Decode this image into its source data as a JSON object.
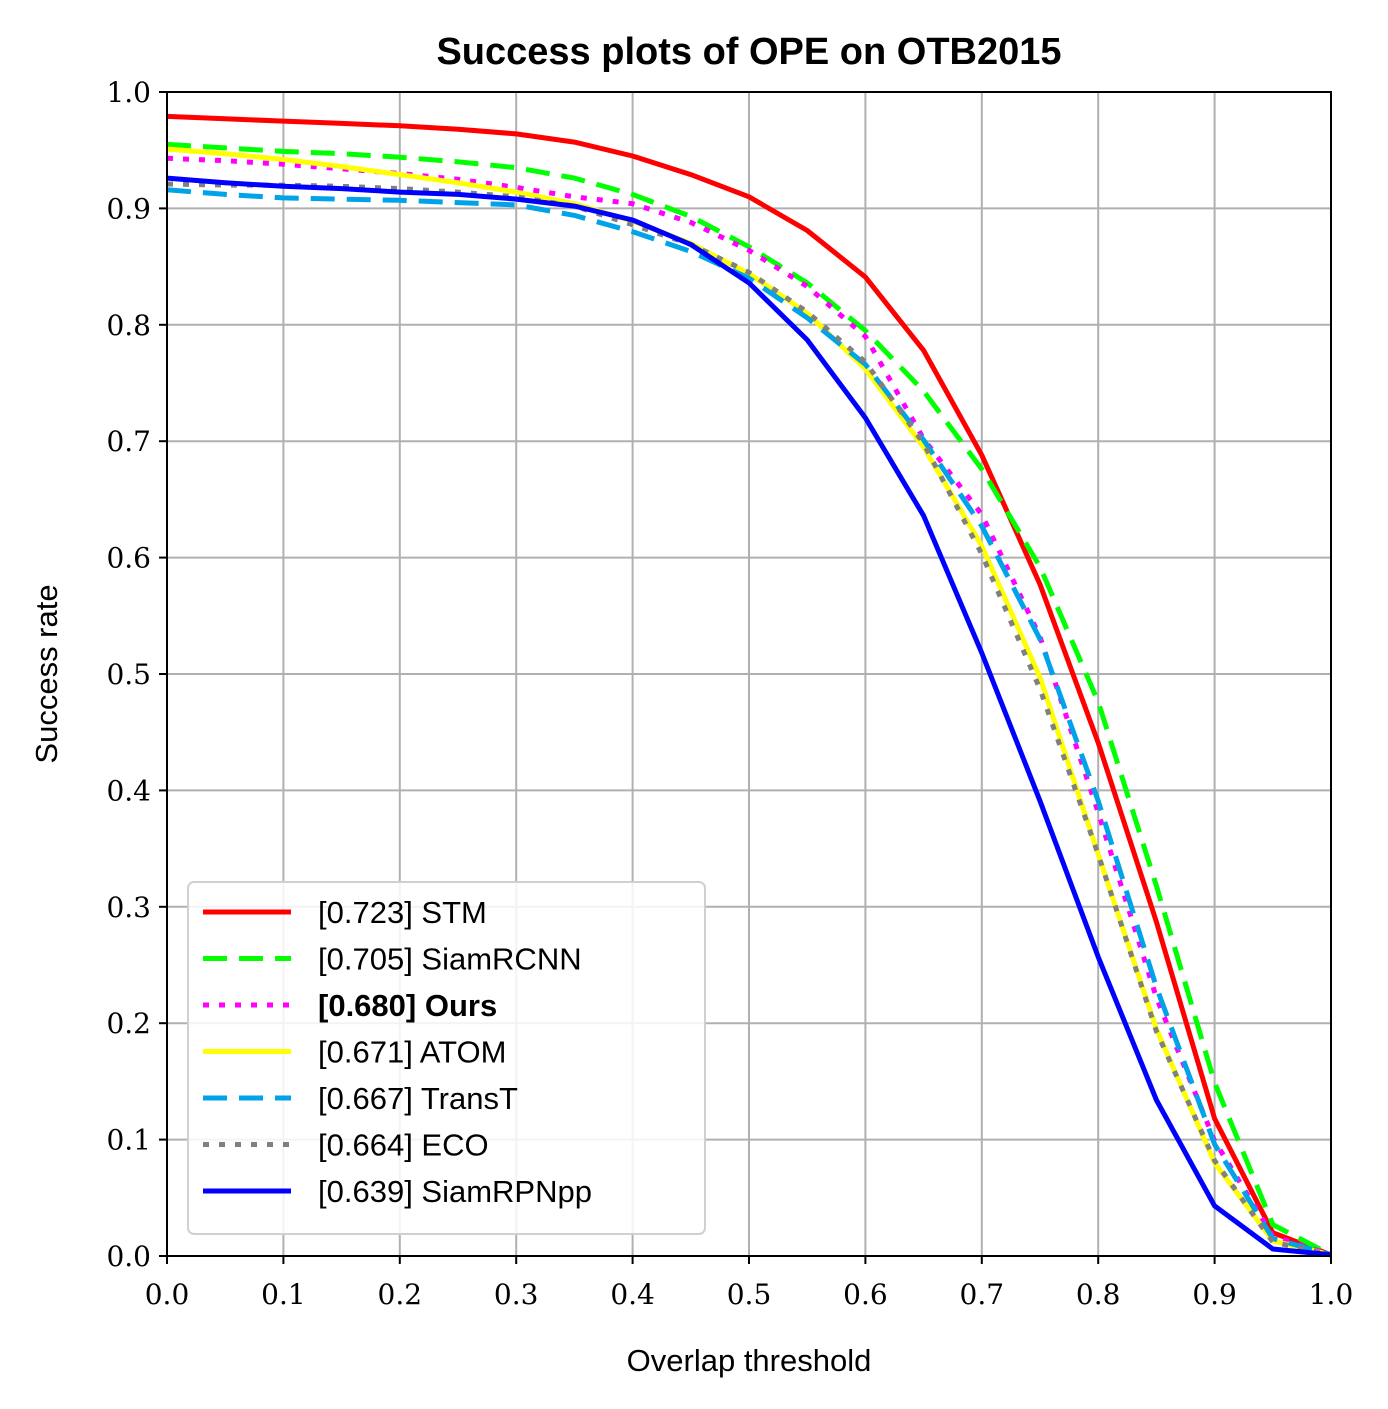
{
  "chart_data": {
    "type": "line",
    "title": "Success plots of OPE on OTB2015",
    "xlabel": "Overlap threshold",
    "ylabel": "Success rate",
    "xlim": [
      0,
      1
    ],
    "ylim": [
      0,
      1
    ],
    "xticks": [
      "0.0",
      "0.1",
      "0.2",
      "0.3",
      "0.4",
      "0.5",
      "0.6",
      "0.7",
      "0.8",
      "0.9",
      "1.0"
    ],
    "yticks": [
      "0.0",
      "0.1",
      "0.2",
      "0.3",
      "0.4",
      "0.5",
      "0.6",
      "0.7",
      "0.8",
      "0.9",
      "1.0"
    ],
    "grid": true,
    "legend_position": "lower-left",
    "x": [
      0,
      0.05,
      0.1,
      0.15,
      0.2,
      0.25,
      0.3,
      0.35,
      0.4,
      0.45,
      0.5,
      0.55,
      0.6,
      0.65,
      0.7,
      0.75,
      0.8,
      0.85,
      0.9,
      0.95,
      1.0
    ],
    "series": [
      {
        "name": "[0.723] STM",
        "color": "#ff0000",
        "style": "solid",
        "bold": false,
        "values": [
          0.979,
          0.977,
          0.975,
          0.973,
          0.971,
          0.968,
          0.964,
          0.957,
          0.945,
          0.929,
          0.91,
          0.881,
          0.841,
          0.778,
          0.688,
          0.577,
          0.441,
          0.287,
          0.118,
          0.02,
          0.001
        ]
      },
      {
        "name": "[0.705] SiamRCNN",
        "color": "#00ff00",
        "style": "dashed",
        "bold": false,
        "values": [
          0.955,
          0.952,
          0.949,
          0.947,
          0.944,
          0.94,
          0.935,
          0.926,
          0.912,
          0.893,
          0.867,
          0.836,
          0.795,
          0.743,
          0.676,
          0.592,
          0.476,
          0.318,
          0.149,
          0.027,
          0.001
        ]
      },
      {
        "name": "[0.680] Ours",
        "color": "#ff00ff",
        "style": "dotted",
        "bold": true,
        "values": [
          0.943,
          0.941,
          0.938,
          0.934,
          0.93,
          0.925,
          0.918,
          0.91,
          0.904,
          0.888,
          0.864,
          0.833,
          0.79,
          0.702,
          0.637,
          0.532,
          0.381,
          0.222,
          0.099,
          0.017,
          0.001
        ]
      },
      {
        "name": "[0.671] ATOM",
        "color": "#ffff00",
        "style": "solid",
        "bold": false,
        "values": [
          0.951,
          0.947,
          0.942,
          0.936,
          0.929,
          0.922,
          0.914,
          0.904,
          0.889,
          0.87,
          0.844,
          0.81,
          0.762,
          0.695,
          0.61,
          0.497,
          0.345,
          0.195,
          0.08,
          0.013,
          0.001
        ]
      },
      {
        "name": "[0.667] TransT",
        "color": "#00a2e8",
        "style": "dashed",
        "bold": false,
        "values": [
          0.916,
          0.912,
          0.909,
          0.908,
          0.907,
          0.905,
          0.903,
          0.894,
          0.88,
          0.863,
          0.84,
          0.806,
          0.766,
          0.701,
          0.627,
          0.53,
          0.391,
          0.231,
          0.096,
          0.015,
          0.001
        ]
      },
      {
        "name": "[0.664] ECO",
        "color": "#808080",
        "style": "dotted",
        "bold": false,
        "values": [
          0.921,
          0.92,
          0.92,
          0.919,
          0.917,
          0.914,
          0.91,
          0.902,
          0.886,
          0.869,
          0.845,
          0.811,
          0.768,
          0.698,
          0.603,
          0.487,
          0.345,
          0.193,
          0.082,
          0.012,
          0.001
        ]
      },
      {
        "name": "[0.639] SiamRPNpp",
        "color": "#0000ff",
        "style": "solid",
        "bold": false,
        "values": [
          0.926,
          0.922,
          0.919,
          0.917,
          0.914,
          0.912,
          0.908,
          0.902,
          0.89,
          0.869,
          0.836,
          0.787,
          0.72,
          0.636,
          0.518,
          0.391,
          0.257,
          0.134,
          0.043,
          0.006,
          0.001
        ]
      }
    ]
  }
}
